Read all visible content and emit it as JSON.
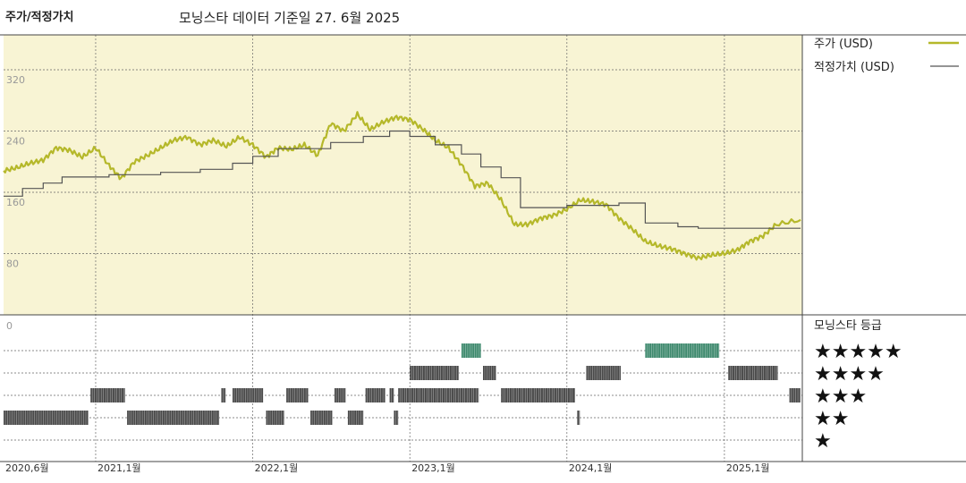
{
  "header": {
    "title": "주가/적정가치",
    "subtitle": "모닝스타 데이터 기준일 27. 6월 2025"
  },
  "colors": {
    "panel_bg": "#f8f4d4",
    "price_line": "#b5b82a",
    "fair_value_line": "#555555",
    "rating_bar": "#4a4a4a",
    "rating_bar_5": "#3f8a6e",
    "grid_dash": "#666666"
  },
  "legend": {
    "price": "주가 (USD)",
    "fair_value": "적정가치 (USD)"
  },
  "rating_title": "모닝스타 등급",
  "chart_data": {
    "type": "line",
    "x_range": [
      "2020-06-01",
      "2025-07-01"
    ],
    "x_tick_labels": [
      "2020,6월",
      "2021,1월",
      "2022,1월",
      "2023,1월",
      "2024,1월",
      "2025,1월"
    ],
    "x_ticks": [
      "2020-06-01",
      "2021-01-01",
      "2022-01-01",
      "2023-01-01",
      "2024-01-01",
      "2025-01-01"
    ],
    "ylim": [
      0,
      320
    ],
    "y_ticks": [
      320,
      240,
      160,
      80,
      0
    ],
    "series": [
      {
        "name": "주가 (USD)",
        "points": [
          [
            "2020-06-01",
            188
          ],
          [
            "2020-07-01",
            192
          ],
          [
            "2020-08-01",
            198
          ],
          [
            "2020-09-01",
            202
          ],
          [
            "2020-10-01",
            218
          ],
          [
            "2020-11-01",
            215
          ],
          [
            "2020-12-01",
            206
          ],
          [
            "2021-01-01",
            218
          ],
          [
            "2021-02-01",
            195
          ],
          [
            "2021-03-01",
            178
          ],
          [
            "2021-04-01",
            200
          ],
          [
            "2021-05-01",
            208
          ],
          [
            "2021-06-01",
            218
          ],
          [
            "2021-07-01",
            228
          ],
          [
            "2021-08-01",
            232
          ],
          [
            "2021-09-01",
            222
          ],
          [
            "2021-10-01",
            228
          ],
          [
            "2021-11-01",
            220
          ],
          [
            "2021-12-01",
            232
          ],
          [
            "2022-01-01",
            222
          ],
          [
            "2022-02-01",
            206
          ],
          [
            "2022-03-01",
            218
          ],
          [
            "2022-04-01",
            216
          ],
          [
            "2022-05-01",
            222
          ],
          [
            "2022-06-01",
            208
          ],
          [
            "2022-07-01",
            250
          ],
          [
            "2022-08-01",
            240
          ],
          [
            "2022-09-01",
            262
          ],
          [
            "2022-10-01",
            242
          ],
          [
            "2022-11-01",
            252
          ],
          [
            "2022-12-01",
            258
          ],
          [
            "2023-01-01",
            255
          ],
          [
            "2023-02-01",
            242
          ],
          [
            "2023-03-01",
            228
          ],
          [
            "2023-04-01",
            218
          ],
          [
            "2023-05-01",
            196
          ],
          [
            "2023-06-01",
            168
          ],
          [
            "2023-07-01",
            172
          ],
          [
            "2023-08-01",
            150
          ],
          [
            "2023-09-01",
            118
          ],
          [
            "2023-10-01",
            118
          ],
          [
            "2023-11-01",
            126
          ],
          [
            "2023-12-01",
            130
          ],
          [
            "2024-01-01",
            138
          ],
          [
            "2024-02-01",
            150
          ],
          [
            "2024-03-01",
            148
          ],
          [
            "2024-04-01",
            144
          ],
          [
            "2024-05-01",
            126
          ],
          [
            "2024-06-01",
            112
          ],
          [
            "2024-07-01",
            96
          ],
          [
            "2024-08-01",
            90
          ],
          [
            "2024-09-01",
            86
          ],
          [
            "2024-10-01",
            80
          ],
          [
            "2024-11-01",
            74
          ],
          [
            "2024-12-01",
            78
          ],
          [
            "2025-01-01",
            80
          ],
          [
            "2025-02-01",
            85
          ],
          [
            "2025-03-01",
            96
          ],
          [
            "2025-04-01",
            103
          ],
          [
            "2025-05-01",
            118
          ],
          [
            "2025-06-27",
            124
          ]
        ]
      },
      {
        "name": "적정가치 (USD)",
        "points": [
          [
            "2020-06-01",
            155
          ],
          [
            "2020-07-15",
            165
          ],
          [
            "2020-09-01",
            172
          ],
          [
            "2020-10-15",
            180
          ],
          [
            "2021-02-01",
            183
          ],
          [
            "2021-06-01",
            186
          ],
          [
            "2021-09-01",
            190
          ],
          [
            "2021-11-15",
            198
          ],
          [
            "2022-01-01",
            207
          ],
          [
            "2022-03-01",
            217
          ],
          [
            "2022-07-01",
            225
          ],
          [
            "2022-09-15",
            233
          ],
          [
            "2022-11-15",
            240
          ],
          [
            "2023-01-01",
            233
          ],
          [
            "2023-03-01",
            222
          ],
          [
            "2023-05-01",
            210
          ],
          [
            "2023-06-15",
            193
          ],
          [
            "2023-08-01",
            179
          ],
          [
            "2023-09-15",
            140
          ],
          [
            "2024-01-01",
            143
          ],
          [
            "2024-05-01",
            146
          ],
          [
            "2024-07-01",
            120
          ],
          [
            "2024-09-15",
            115
          ],
          [
            "2024-11-01",
            113
          ],
          [
            "2025-06-27",
            113
          ]
        ]
      }
    ],
    "rating_levels": [
      {
        "stars": "★★★★★",
        "periods": [
          [
            "2023-05-01",
            "2023-06-15"
          ],
          [
            "2024-07-01",
            "2024-12-20"
          ]
        ]
      },
      {
        "stars": "★★★★",
        "periods": [
          [
            "2023-01-01",
            "2023-04-25"
          ],
          [
            "2023-06-20",
            "2023-07-20"
          ],
          [
            "2024-02-15",
            "2024-05-05"
          ],
          [
            "2025-01-10",
            "2025-05-05"
          ]
        ]
      },
      {
        "stars": "★★★",
        "periods": [
          [
            "2020-12-20",
            "2021-03-10"
          ],
          [
            "2021-10-20",
            "2021-10-30"
          ],
          [
            "2021-11-15",
            "2022-01-25"
          ],
          [
            "2022-03-20",
            "2022-05-10"
          ],
          [
            "2022-07-10",
            "2022-08-05"
          ],
          [
            "2022-09-20",
            "2022-11-05"
          ],
          [
            "2022-11-15",
            "2022-11-25"
          ],
          [
            "2022-12-05",
            "2023-06-10"
          ],
          [
            "2023-08-01",
            "2024-01-20"
          ],
          [
            "2025-06-01",
            "2025-06-27"
          ]
        ]
      },
      {
        "stars": "★★",
        "periods": [
          [
            "2020-06-01",
            "2020-12-15"
          ],
          [
            "2021-03-15",
            "2021-10-15"
          ],
          [
            "2022-02-01",
            "2022-03-15"
          ],
          [
            "2022-05-15",
            "2022-07-05"
          ],
          [
            "2022-08-10",
            "2022-09-15"
          ],
          [
            "2022-11-25",
            "2022-12-05"
          ],
          [
            "2024-01-25",
            "2024-01-31"
          ]
        ]
      },
      {
        "stars": "★",
        "periods": []
      }
    ]
  }
}
